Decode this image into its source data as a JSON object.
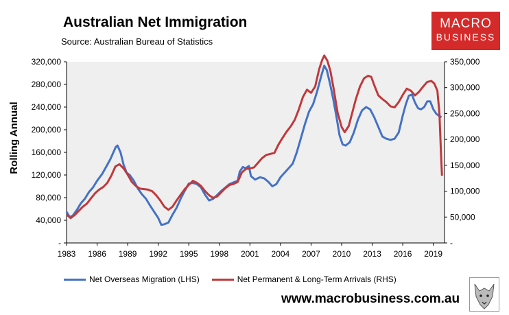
{
  "header": {
    "title": "Australian Net Immigration",
    "subtitle": "Source: Australian Bureau of Statistics"
  },
  "logo": {
    "line1": "MACRO",
    "line2": "BUSINESS",
    "color": "#d42a2a"
  },
  "website": "www.macrobusiness.com.au",
  "chart_data": {
    "type": "line",
    "ylabel": "Rolling Annual",
    "x_ticks": [
      "1983",
      "1986",
      "1989",
      "1992",
      "1995",
      "1998",
      "2001",
      "2004",
      "2007",
      "2010",
      "2013",
      "2016",
      "2019"
    ],
    "y_left": {
      "ylim": [
        0,
        320000
      ],
      "ticks": [
        "-",
        "40,000",
        "80,000",
        "120,000",
        "160,000",
        "200,000",
        "240,000",
        "280,000",
        "320,000"
      ]
    },
    "y_right": {
      "ylim": [
        0,
        350000
      ],
      "ticks": [
        "-",
        "50,000",
        "100,000",
        "150,000",
        "200,000",
        "250,000",
        "300,000",
        "350,000"
      ]
    },
    "grid": false,
    "legend_position": "bottom",
    "series": [
      {
        "name": "Net Overseas Migration (LHS)",
        "axis": "left",
        "color": "#4472c4",
        "points": [
          [
            1983.0,
            55000
          ],
          [
            1983.3,
            46000
          ],
          [
            1983.6,
            48000
          ],
          [
            1984.0,
            58000
          ],
          [
            1984.4,
            70000
          ],
          [
            1984.8,
            78000
          ],
          [
            1985.2,
            90000
          ],
          [
            1985.6,
            98000
          ],
          [
            1986.0,
            110000
          ],
          [
            1986.5,
            122000
          ],
          [
            1987.0,
            138000
          ],
          [
            1987.3,
            148000
          ],
          [
            1987.6,
            160000
          ],
          [
            1987.85,
            170000
          ],
          [
            1988.0,
            172000
          ],
          [
            1988.3,
            160000
          ],
          [
            1988.6,
            138000
          ],
          [
            1988.9,
            124000
          ],
          [
            1989.2,
            120000
          ],
          [
            1989.6,
            110000
          ],
          [
            1990.0,
            96000
          ],
          [
            1990.4,
            86000
          ],
          [
            1990.8,
            78000
          ],
          [
            1991.2,
            66000
          ],
          [
            1991.6,
            55000
          ],
          [
            1992.0,
            44000
          ],
          [
            1992.3,
            32000
          ],
          [
            1992.6,
            33000
          ],
          [
            1993.0,
            36000
          ],
          [
            1993.4,
            50000
          ],
          [
            1993.8,
            62000
          ],
          [
            1994.2,
            78000
          ],
          [
            1994.6,
            92000
          ],
          [
            1995.0,
            105000
          ],
          [
            1995.4,
            106000
          ],
          [
            1995.8,
            104000
          ],
          [
            1996.2,
            98000
          ],
          [
            1996.6,
            85000
          ],
          [
            1997.0,
            75000
          ],
          [
            1997.4,
            78000
          ],
          [
            1997.8,
            85000
          ],
          [
            1998.2,
            92000
          ],
          [
            1998.6,
            98000
          ],
          [
            1999.0,
            104000
          ],
          [
            1999.4,
            107000
          ],
          [
            1999.8,
            110000
          ],
          [
            2000.0,
            126000
          ],
          [
            2000.3,
            134000
          ],
          [
            2000.6,
            132000
          ],
          [
            2000.9,
            136000
          ],
          [
            2001.1,
            118000
          ],
          [
            2001.5,
            112000
          ],
          [
            2002.0,
            116000
          ],
          [
            2002.4,
            114000
          ],
          [
            2002.8,
            108000
          ],
          [
            2003.2,
            100000
          ],
          [
            2003.6,
            104000
          ],
          [
            2004.0,
            116000
          ],
          [
            2004.4,
            124000
          ],
          [
            2004.8,
            132000
          ],
          [
            2005.2,
            140000
          ],
          [
            2005.6,
            160000
          ],
          [
            2006.0,
            185000
          ],
          [
            2006.4,
            210000
          ],
          [
            2006.8,
            232000
          ],
          [
            2007.2,
            245000
          ],
          [
            2007.6,
            268000
          ],
          [
            2008.0,
            295000
          ],
          [
            2008.3,
            313000
          ],
          [
            2008.55,
            305000
          ],
          [
            2008.9,
            278000
          ],
          [
            2009.2,
            252000
          ],
          [
            2009.5,
            222000
          ],
          [
            2009.8,
            190000
          ],
          [
            2010.1,
            174000
          ],
          [
            2010.4,
            172000
          ],
          [
            2010.8,
            178000
          ],
          [
            2011.2,
            195000
          ],
          [
            2011.6,
            218000
          ],
          [
            2012.0,
            234000
          ],
          [
            2012.4,
            240000
          ],
          [
            2012.8,
            236000
          ],
          [
            2013.2,
            222000
          ],
          [
            2013.6,
            205000
          ],
          [
            2014.0,
            188000
          ],
          [
            2014.4,
            184000
          ],
          [
            2014.8,
            182000
          ],
          [
            2015.2,
            184000
          ],
          [
            2015.6,
            195000
          ],
          [
            2016.0,
            225000
          ],
          [
            2016.3,
            245000
          ],
          [
            2016.6,
            260000
          ],
          [
            2016.9,
            262000
          ],
          [
            2017.2,
            248000
          ],
          [
            2017.5,
            238000
          ],
          [
            2017.8,
            236000
          ],
          [
            2018.1,
            240000
          ],
          [
            2018.4,
            250000
          ],
          [
            2018.7,
            250000
          ],
          [
            2019.0,
            236000
          ],
          [
            2019.3,
            228000
          ],
          [
            2019.6,
            224000
          ],
          [
            2019.8,
            222000
          ]
        ]
      },
      {
        "name": "Net Permanent & Long-Term Arrivals (RHS)",
        "axis": "right",
        "color": "#c0393b",
        "points": [
          [
            1983.0,
            55000
          ],
          [
            1983.4,
            48000
          ],
          [
            1983.8,
            54000
          ],
          [
            1984.2,
            62000
          ],
          [
            1984.6,
            70000
          ],
          [
            1985.0,
            76000
          ],
          [
            1985.4,
            86000
          ],
          [
            1985.8,
            96000
          ],
          [
            1986.2,
            103000
          ],
          [
            1986.6,
            108000
          ],
          [
            1987.0,
            116000
          ],
          [
            1987.4,
            130000
          ],
          [
            1987.8,
            148000
          ],
          [
            1988.2,
            152000
          ],
          [
            1988.6,
            144000
          ],
          [
            1989.0,
            132000
          ],
          [
            1989.4,
            118000
          ],
          [
            1989.8,
            110000
          ],
          [
            1990.2,
            105000
          ],
          [
            1990.6,
            104000
          ],
          [
            1991.0,
            103000
          ],
          [
            1991.4,
            100000
          ],
          [
            1991.8,
            92000
          ],
          [
            1992.2,
            82000
          ],
          [
            1992.6,
            70000
          ],
          [
            1993.0,
            64000
          ],
          [
            1993.4,
            70000
          ],
          [
            1993.8,
            82000
          ],
          [
            1994.2,
            93000
          ],
          [
            1994.6,
            104000
          ],
          [
            1995.0,
            112000
          ],
          [
            1995.4,
            120000
          ],
          [
            1995.8,
            116000
          ],
          [
            1996.2,
            110000
          ],
          [
            1996.6,
            100000
          ],
          [
            1997.0,
            92000
          ],
          [
            1997.4,
            87000
          ],
          [
            1997.8,
            90000
          ],
          [
            1998.2,
            98000
          ],
          [
            1998.6,
            106000
          ],
          [
            1999.0,
            112000
          ],
          [
            1999.4,
            114000
          ],
          [
            1999.8,
            118000
          ],
          [
            2000.2,
            136000
          ],
          [
            2000.6,
            143000
          ],
          [
            2001.0,
            144000
          ],
          [
            2001.4,
            146000
          ],
          [
            2001.8,
            155000
          ],
          [
            2002.2,
            164000
          ],
          [
            2002.6,
            170000
          ],
          [
            2003.0,
            172000
          ],
          [
            2003.4,
            174000
          ],
          [
            2003.8,
            190000
          ],
          [
            2004.2,
            203000
          ],
          [
            2004.6,
            215000
          ],
          [
            2005.0,
            225000
          ],
          [
            2005.4,
            238000
          ],
          [
            2005.8,
            258000
          ],
          [
            2006.2,
            282000
          ],
          [
            2006.6,
            296000
          ],
          [
            2007.0,
            290000
          ],
          [
            2007.4,
            302000
          ],
          [
            2007.8,
            336000
          ],
          [
            2008.1,
            354000
          ],
          [
            2008.3,
            362000
          ],
          [
            2008.6,
            352000
          ],
          [
            2008.9,
            332000
          ],
          [
            2009.2,
            300000
          ],
          [
            2009.6,
            252000
          ],
          [
            2010.0,
            224000
          ],
          [
            2010.3,
            214000
          ],
          [
            2010.7,
            226000
          ],
          [
            2011.0,
            248000
          ],
          [
            2011.4,
            278000
          ],
          [
            2011.8,
            302000
          ],
          [
            2012.2,
            318000
          ],
          [
            2012.6,
            323000
          ],
          [
            2012.9,
            321000
          ],
          [
            2013.2,
            305000
          ],
          [
            2013.6,
            285000
          ],
          [
            2014.0,
            278000
          ],
          [
            2014.4,
            272000
          ],
          [
            2014.8,
            264000
          ],
          [
            2015.2,
            262000
          ],
          [
            2015.6,
            272000
          ],
          [
            2016.0,
            286000
          ],
          [
            2016.4,
            298000
          ],
          [
            2016.8,
            294000
          ],
          [
            2017.2,
            285000
          ],
          [
            2017.6,
            292000
          ],
          [
            2018.0,
            302000
          ],
          [
            2018.4,
            311000
          ],
          [
            2018.8,
            313000
          ],
          [
            2019.1,
            308000
          ],
          [
            2019.4,
            294000
          ],
          [
            2019.6,
            250000
          ],
          [
            2019.75,
            175000
          ],
          [
            2019.85,
            130000
          ]
        ]
      }
    ]
  }
}
